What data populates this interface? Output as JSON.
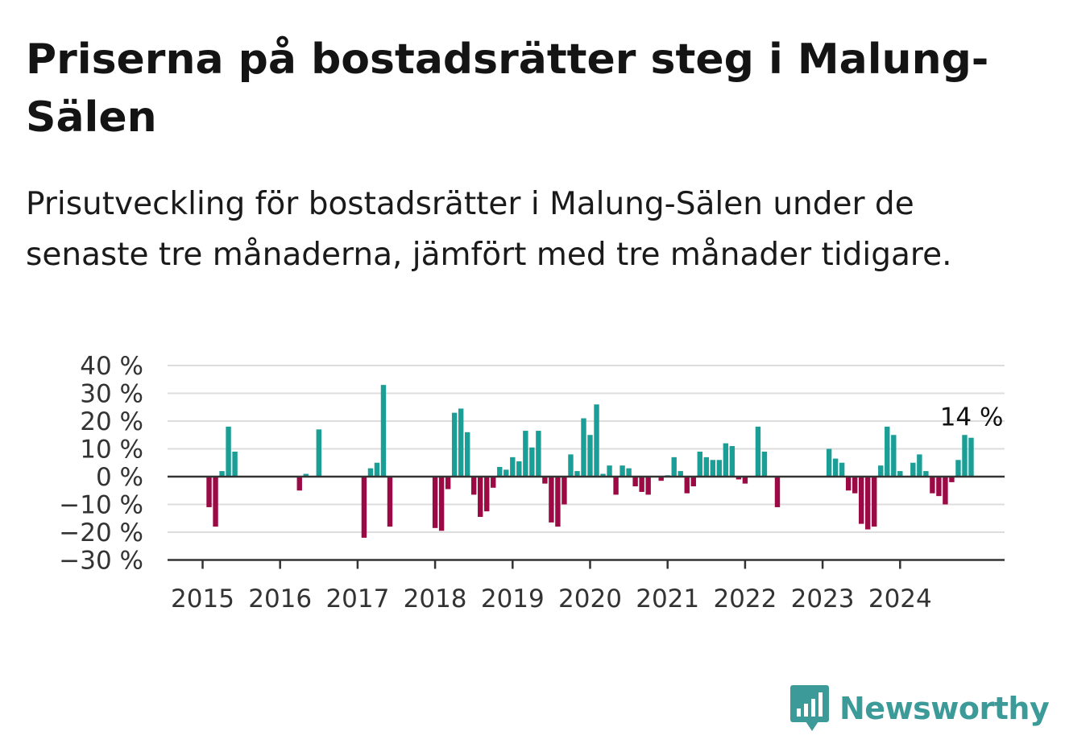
{
  "title": "Priserna på bostadsrätter steg i Malung-Sälen",
  "subtitle": "Prisutveckling för bostadsrätter i Malung-Sälen under de senaste tre månaderna, jämfört med tre månader tidigare.",
  "brand": {
    "name": "Newsworthy",
    "icon": "newsworthy-logo-icon"
  },
  "colors": {
    "positive": "#1a9e96",
    "negative": "#9c0a46",
    "grid": "#dddddd",
    "axis": "#333333",
    "brand": "#3c9b98"
  },
  "chart_data": {
    "type": "bar",
    "title": "Priserna på bostadsrätter steg i Malung-Sälen",
    "xlabel": "",
    "ylabel": "",
    "ylim": [
      -30,
      40
    ],
    "y_ticks": [
      40,
      30,
      20,
      10,
      0,
      -10,
      -20,
      -30
    ],
    "y_tick_labels": [
      "40 %",
      "30 %",
      "20 %",
      "10 %",
      "0 %",
      "−10 %",
      "−20 %",
      "−30 %"
    ],
    "x_tick_labels": [
      "2015",
      "2016",
      "2017",
      "2018",
      "2019",
      "2020",
      "2021",
      "2022",
      "2023",
      "2024"
    ],
    "grid": true,
    "start": "2015-01",
    "end_label": "14 %",
    "values": [
      0,
      -11,
      -18,
      2,
      18,
      9,
      null,
      null,
      null,
      null,
      null,
      null,
      null,
      null,
      null,
      -5,
      1,
      null,
      17,
      null,
      null,
      null,
      null,
      null,
      null,
      -22,
      3,
      5,
      33,
      -18,
      null,
      null,
      null,
      null,
      null,
      null,
      -18.5,
      -19.5,
      -4.5,
      23,
      24.5,
      16,
      -6.5,
      -14.5,
      -12.5,
      -4,
      3.5,
      2.5,
      7,
      5.5,
      16.5,
      10.5,
      16.5,
      -2.5,
      -16.5,
      -18,
      -10,
      8,
      2,
      21,
      15,
      26,
      1,
      4,
      -6.5,
      4,
      3,
      -3.5,
      -5.5,
      -6.5,
      0,
      -1.5,
      0.5,
      7,
      2,
      -6,
      -3.5,
      9,
      7,
      6,
      6,
      12,
      11,
      -1,
      -2.5,
      null,
      18,
      9,
      null,
      -11,
      null,
      null,
      null,
      null,
      null,
      null,
      null,
      10,
      6.5,
      5,
      -5,
      -6,
      -17,
      -19,
      -18,
      4,
      18,
      15,
      2,
      null,
      5,
      8,
      2,
      -6,
      -7,
      -10,
      -2,
      6,
      15,
      14
    ]
  }
}
